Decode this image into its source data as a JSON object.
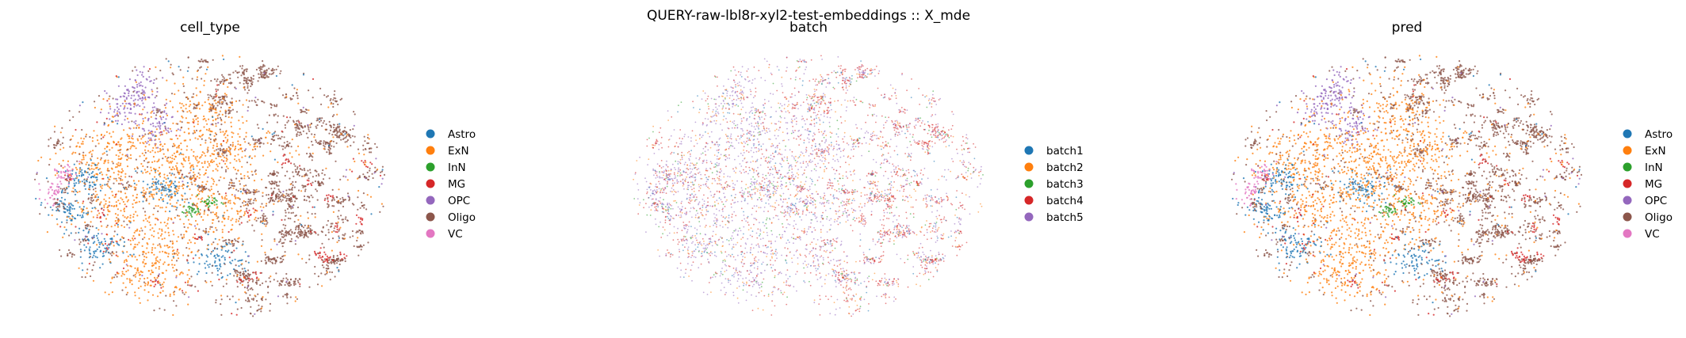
{
  "figure": {
    "suptitle": "QUERY-raw-lbl8r-xyl2-test-embeddings :: X_mde"
  },
  "chart_data": [
    {
      "type": "scatter",
      "title": "cell_type",
      "xlabel": "",
      "ylabel": "",
      "axes_visible": false,
      "grid": false,
      "legend_position": "right",
      "series": [
        {
          "name": "Astro",
          "color": "#1f77b4"
        },
        {
          "name": "ExN",
          "color": "#ff7f0e"
        },
        {
          "name": "InN",
          "color": "#2ca02c"
        },
        {
          "name": "MG",
          "color": "#d62728"
        },
        {
          "name": "OPC",
          "color": "#9467bd"
        },
        {
          "name": "Oligo",
          "color": "#8c564b"
        },
        {
          "name": "VC",
          "color": "#e377c2"
        }
      ]
    },
    {
      "type": "scatter",
      "title": "batch",
      "xlabel": "",
      "ylabel": "",
      "axes_visible": false,
      "grid": false,
      "legend_position": "right",
      "series": [
        {
          "name": "batch1",
          "color": "#1f77b4"
        },
        {
          "name": "batch2",
          "color": "#ff7f0e"
        },
        {
          "name": "batch3",
          "color": "#2ca02c"
        },
        {
          "name": "batch4",
          "color": "#d62728"
        },
        {
          "name": "batch5",
          "color": "#9467bd"
        }
      ]
    },
    {
      "type": "scatter",
      "title": "pred",
      "xlabel": "",
      "ylabel": "",
      "axes_visible": false,
      "grid": false,
      "legend_position": "right",
      "series": [
        {
          "name": "Astro",
          "color": "#1f77b4"
        },
        {
          "name": "ExN",
          "color": "#ff7f0e"
        },
        {
          "name": "InN",
          "color": "#2ca02c"
        },
        {
          "name": "MG",
          "color": "#d62728"
        },
        {
          "name": "OPC",
          "color": "#9467bd"
        },
        {
          "name": "Oligo",
          "color": "#8c564b"
        },
        {
          "name": "VC",
          "color": "#e377c2"
        }
      ]
    }
  ]
}
